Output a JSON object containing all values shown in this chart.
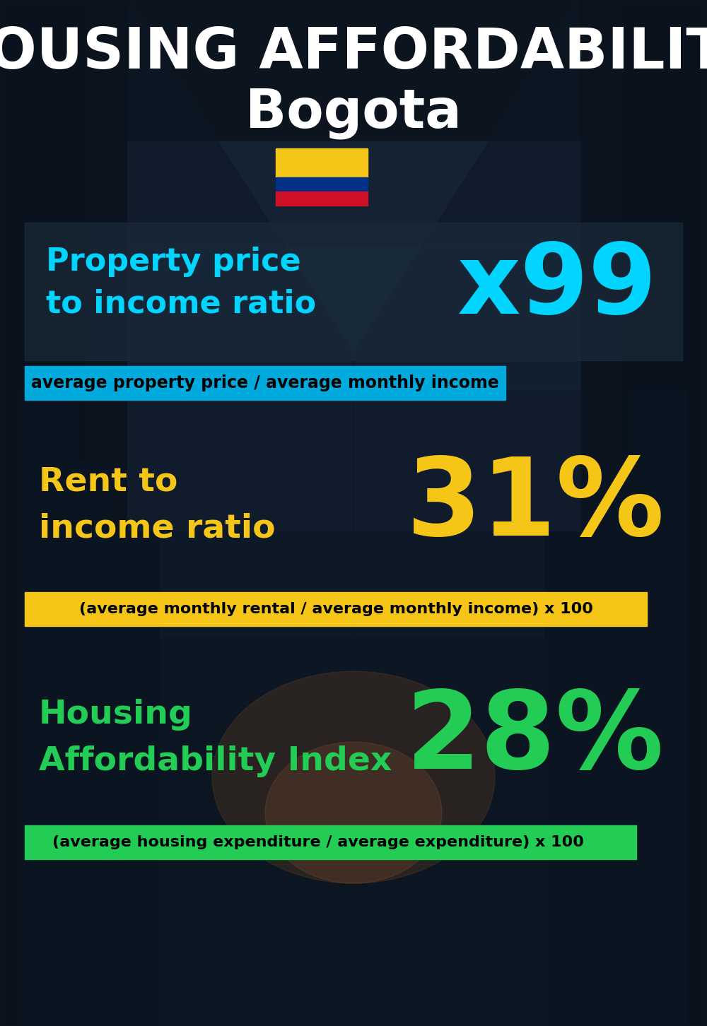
{
  "title_line1": "HOUSING AFFORDABILITY",
  "title_line2": "Bogota",
  "bg_color": "#0d1521",
  "section1_label": "Property price\nto income ratio",
  "section1_value": "x99",
  "section1_label_color": "#00d4ff",
  "section1_value_color": "#00d4ff",
  "section1_subtitle": "average property price / average monthly income",
  "section1_subtitle_bg": "#00aadd",
  "section1_subtitle_color": "#000000",
  "section2_label": "Rent to\nincome ratio",
  "section2_value": "31%",
  "section2_label_color": "#f5c518",
  "section2_value_color": "#f5c518",
  "section2_subtitle": "(average monthly rental / average monthly income) x 100",
  "section2_subtitle_bg": "#f5c518",
  "section2_subtitle_color": "#000000",
  "section3_label": "Housing\nAffordability Index",
  "section3_value": "28%",
  "section3_label_color": "#22cc55",
  "section3_value_color": "#22cc55",
  "section3_subtitle": "(average housing expenditure / average expenditure) x 100",
  "section3_subtitle_bg": "#22cc55",
  "section3_subtitle_color": "#000000",
  "flag_yellow": "#f5c518",
  "flag_blue": "#003087",
  "flag_red": "#ce1126",
  "white": "#ffffff",
  "panel_color": "#1a2a3a",
  "panel_alpha": 0.72
}
